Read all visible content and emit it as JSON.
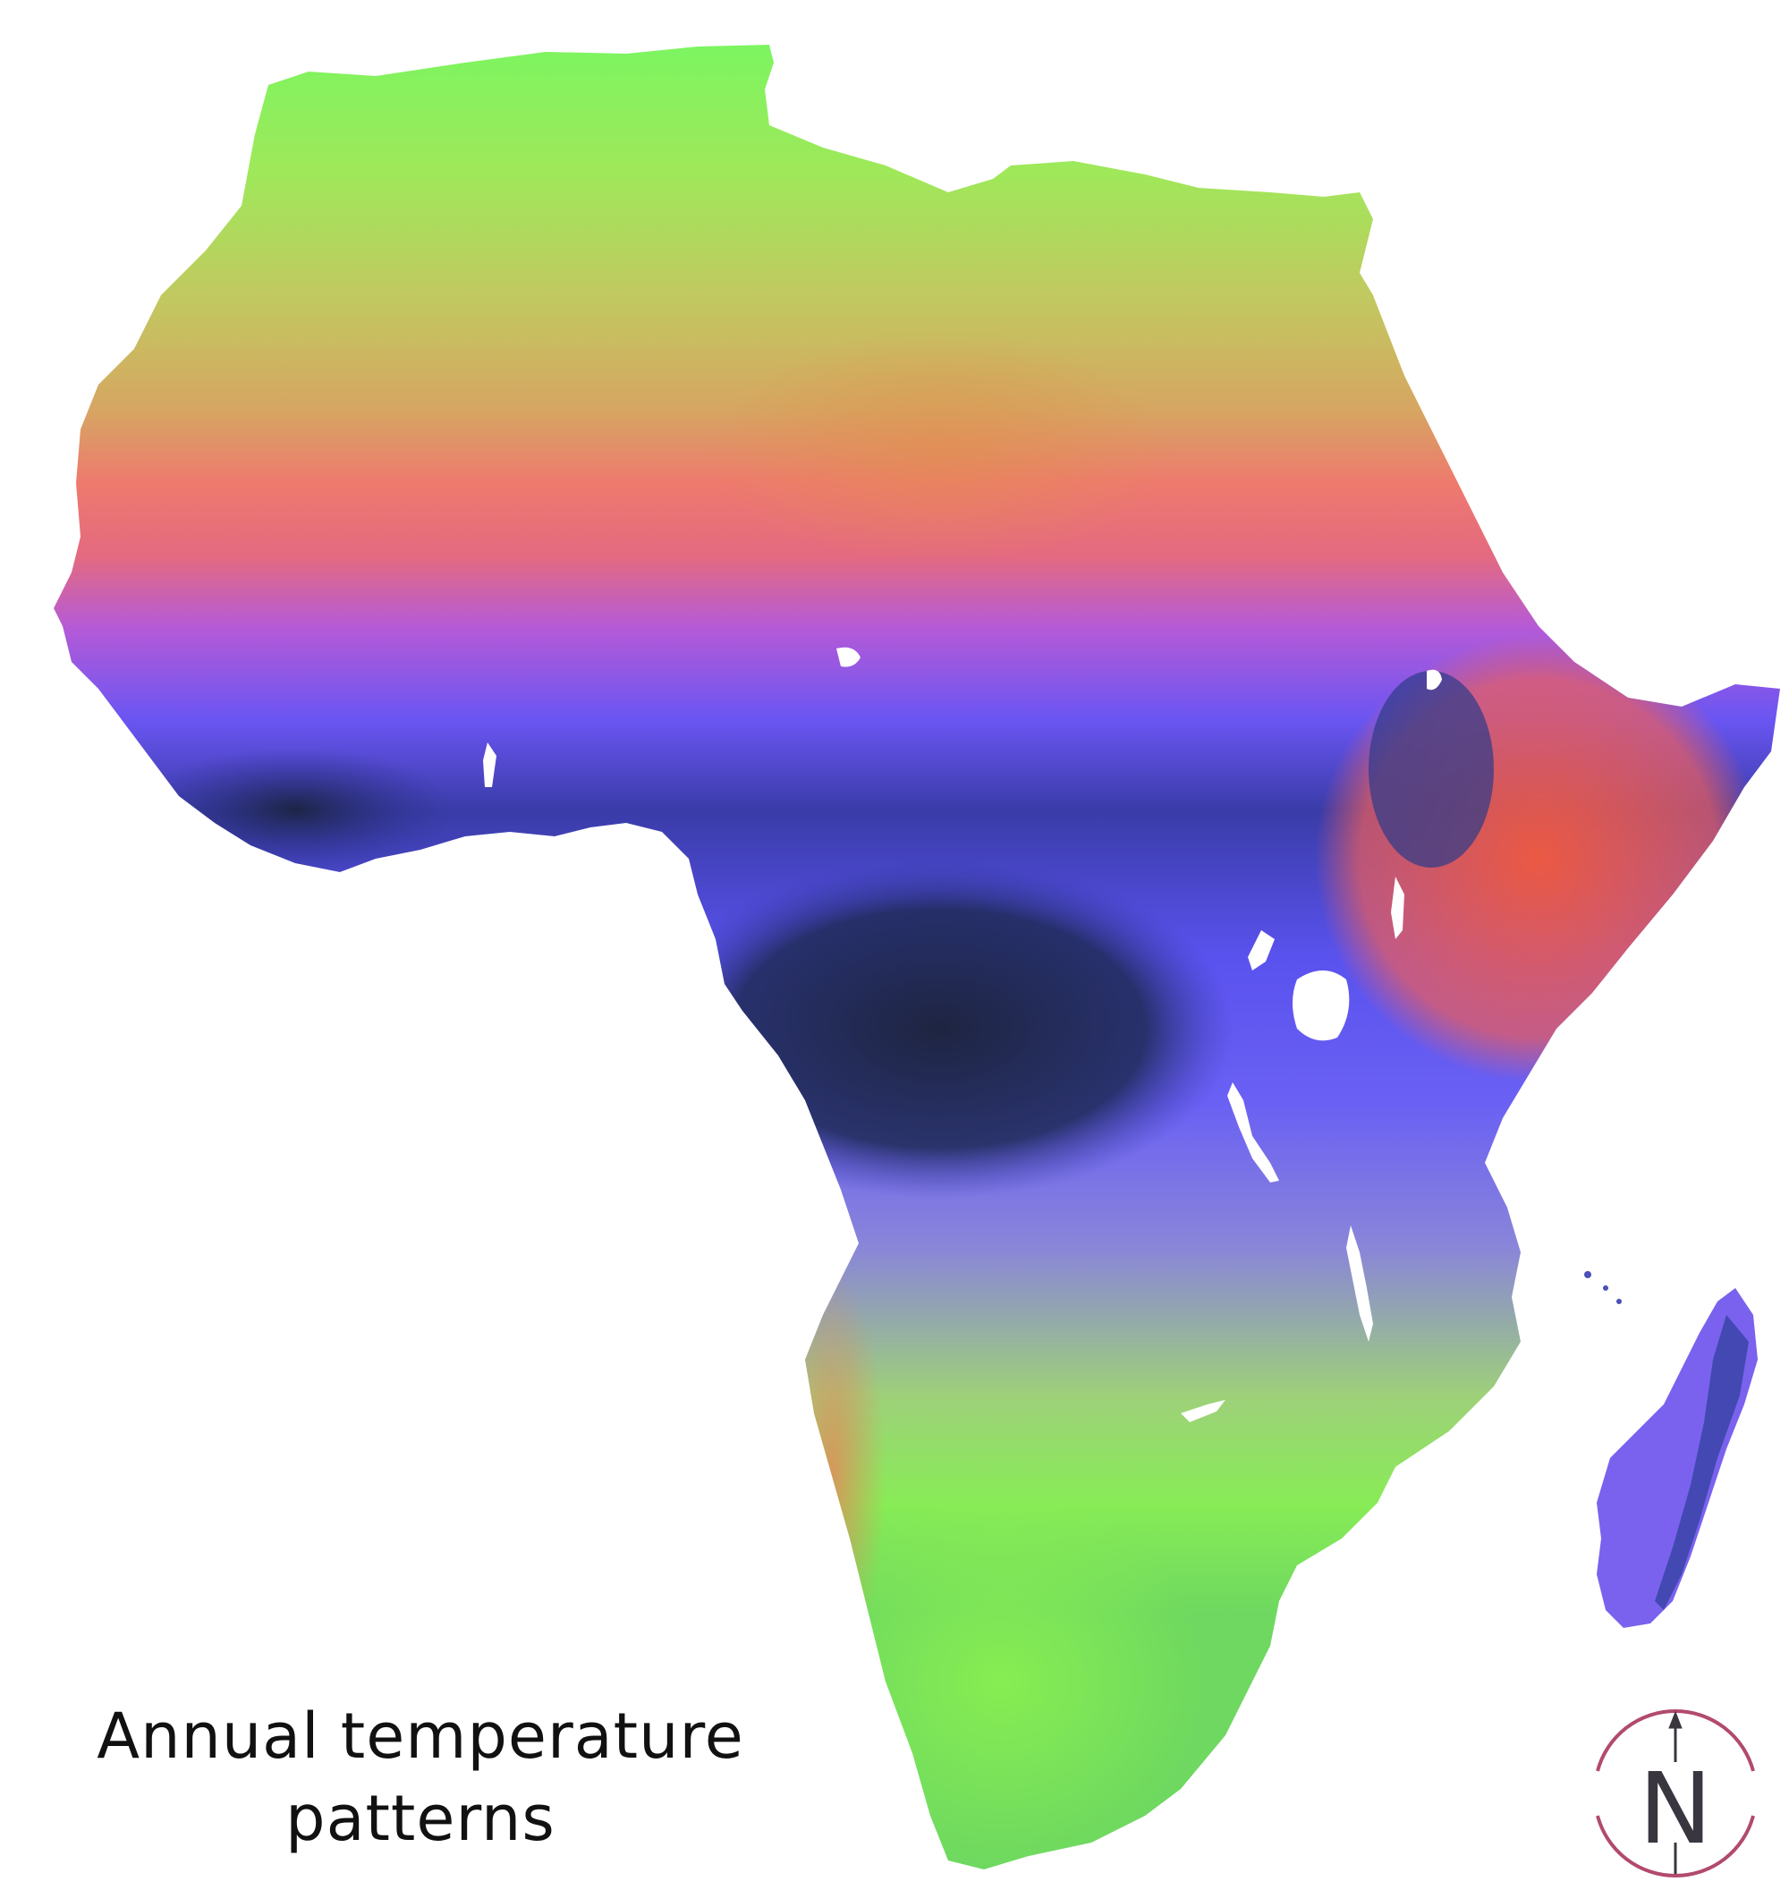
{
  "title": {
    "line1": "Annual temperature",
    "line2": "patterns"
  },
  "compass": {
    "letter": "N",
    "icon": "north-arrow-icon",
    "ring_color": "#b24a6e",
    "letter_color": "#3a3640"
  },
  "colors": {
    "north_green": "#8ef05a",
    "sahara_yellow": "#c8b860",
    "sahel_red": "#f06a78",
    "tropics_blue": "#5a55f0",
    "rainforest_dark": "#1e2a48",
    "horn_red": "#f0604a",
    "south_green": "#8ee85a",
    "lake_white": "#ffffff"
  }
}
